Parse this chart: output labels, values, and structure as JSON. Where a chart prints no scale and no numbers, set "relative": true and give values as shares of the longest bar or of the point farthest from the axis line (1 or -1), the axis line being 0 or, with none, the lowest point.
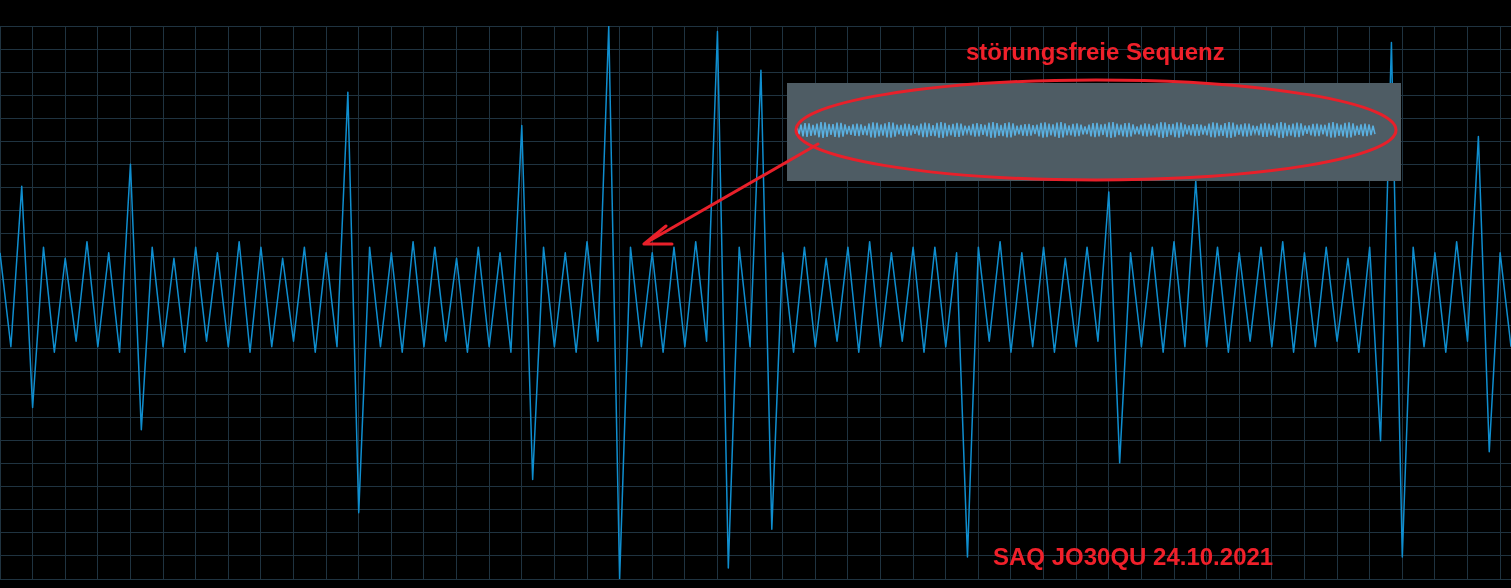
{
  "chart_data": {
    "type": "line",
    "relative": true,
    "color": "#0f8ecf",
    "grid": true,
    "marker": "none",
    "line_style": "solid",
    "legend": false,
    "categories": [
      null,
      null,
      null,
      null,
      null,
      null,
      null,
      null,
      null,
      null,
      null,
      null,
      null,
      null,
      null,
      null,
      null,
      null,
      null,
      null,
      null,
      null,
      null,
      null,
      null,
      null,
      null,
      null,
      null,
      null,
      null,
      null,
      null,
      null,
      null,
      null,
      null,
      null,
      null,
      null,
      null,
      null,
      null,
      null,
      null,
      null,
      null,
      null,
      null,
      null,
      null,
      null,
      null,
      null,
      null,
      null,
      null,
      null,
      null,
      null,
      null,
      null,
      null,
      null,
      null,
      null,
      null,
      null,
      null,
      null,
      null,
      null,
      null,
      null,
      null,
      null,
      null,
      null,
      null,
      null,
      null,
      null,
      null,
      null,
      null,
      null,
      null,
      null,
      null,
      null,
      null,
      null,
      null,
      null,
      null,
      null,
      null,
      null,
      null,
      null,
      null,
      null,
      null,
      null,
      null,
      null,
      null,
      null,
      null,
      null,
      null,
      null,
      null,
      null,
      null,
      null,
      null,
      null,
      null,
      null,
      null,
      null,
      null,
      null,
      null,
      null,
      null,
      null,
      null,
      null,
      null,
      null,
      null,
      null,
      null,
      null,
      null,
      null,
      null,
      null
    ],
    "values": [
      0.59,
      0.42,
      0.71,
      0.31,
      0.6,
      0.41,
      0.58,
      0.43,
      0.61,
      0.42,
      0.59,
      0.41,
      0.75,
      0.27,
      0.6,
      0.42,
      0.58,
      0.41,
      0.6,
      0.43,
      0.59,
      0.42,
      0.61,
      0.41,
      0.6,
      0.42,
      0.58,
      0.43,
      0.6,
      0.41,
      0.59,
      0.42,
      0.88,
      0.12,
      0.6,
      0.42,
      0.59,
      0.41,
      0.61,
      0.42,
      0.6,
      0.43,
      0.58,
      0.41,
      0.6,
      0.42,
      0.59,
      0.41,
      0.82,
      0.18,
      0.6,
      0.42,
      0.59,
      0.41,
      0.61,
      0.43,
      1,
      0,
      0.6,
      0.42,
      0.59,
      0.41,
      0.6,
      0.42,
      0.61,
      0.43,
      0.99,
      0.02,
      0.6,
      0.42,
      0.92,
      0.09,
      0.59,
      0.41,
      0.6,
      0.42,
      0.58,
      0.43,
      0.6,
      0.41,
      0.61,
      0.42,
      0.59,
      0.43,
      0.6,
      0.41,
      0.6,
      0.42,
      0.59,
      0.04,
      0.6,
      0.43,
      0.61,
      0.41,
      0.59,
      0.42,
      0.6,
      0.41,
      0.58,
      0.42,
      0.6,
      0.43,
      0.7,
      0.21,
      0.59,
      0.42,
      0.6,
      0.41,
      0.61,
      0.42,
      0.72,
      0.42,
      0.6,
      0.41,
      0.59,
      0.43,
      0.6,
      0.42,
      0.61,
      0.41,
      0.59,
      0.42,
      0.6,
      0.43,
      0.58,
      0.41,
      0.6,
      0.25,
      0.97,
      0.04,
      0.6,
      0.42,
      0.59,
      0.41,
      0.61,
      0.43,
      0.8,
      0.23,
      0.59,
      0.42
    ],
    "annotations": [
      "störungsfreie Sequenz",
      "SAQ JO30QU 24.10.2021"
    ]
  }
}
